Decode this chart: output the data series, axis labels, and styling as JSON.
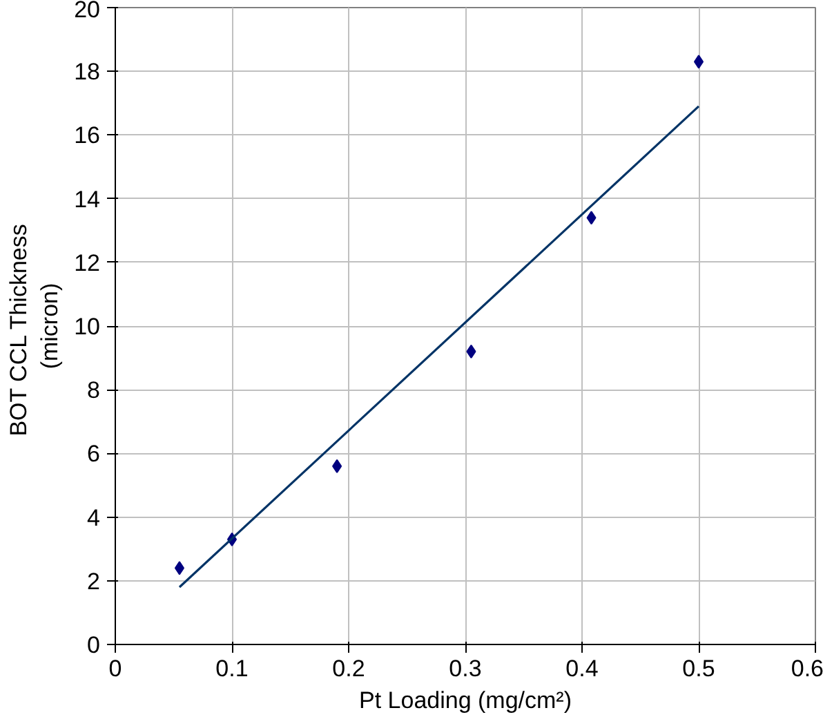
{
  "chart_data": {
    "type": "scatter",
    "xlabel": "Pt Loading (mg/cm²)",
    "ylabel": "BOT  CCL Thickness\n(micron)",
    "xlim": [
      0,
      0.6
    ],
    "ylim": [
      0,
      20
    ],
    "xticks": [
      0,
      0.1,
      0.2,
      0.3,
      0.4,
      0.5,
      0.6
    ],
    "yticks": [
      0,
      2,
      4,
      6,
      8,
      10,
      12,
      14,
      16,
      18,
      20
    ],
    "grid": true,
    "series": [
      {
        "color": "#000080",
        "marker": "diamond",
        "x": [
          0.055,
          0.1,
          0.19,
          0.305,
          0.408,
          0.5
        ],
        "values": [
          2.4,
          3.3,
          5.6,
          9.2,
          13.4,
          18.3
        ]
      },
      {
        "type": "line",
        "color": "#003366",
        "x": [
          0.055,
          0.5
        ],
        "values": [
          1.8,
          16.9
        ]
      }
    ]
  }
}
